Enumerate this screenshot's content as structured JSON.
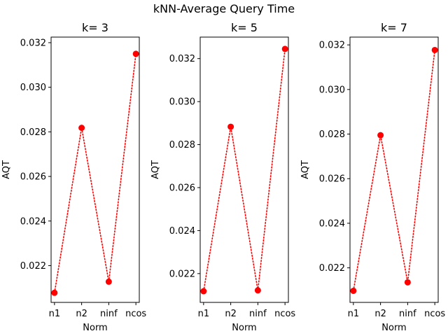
{
  "figure": {
    "title": "kNN-Average Query Time"
  },
  "colors": {
    "series": "#ff0000",
    "axes": "#000000",
    "background": "#ffffff"
  },
  "chart_data": [
    {
      "type": "line",
      "title": "k= 3",
      "xlabel": "Norm",
      "ylabel": "AQT",
      "categories": [
        "n1",
        "n2",
        "ninf",
        "ncos"
      ],
      "series": [
        {
          "values": [
            0.02078,
            0.02818,
            0.02128,
            0.0315
          ],
          "line_style": "dotted",
          "marker": "circle"
        }
      ],
      "ylim": [
        0.02035,
        0.03225
      ],
      "yticks": [
        0.022,
        0.024,
        0.026,
        0.028,
        0.03,
        0.032
      ],
      "ytick_labels": [
        "0.022",
        "0.024",
        "0.026",
        "0.028",
        "0.030",
        "0.032"
      ],
      "grid": false
    },
    {
      "type": "line",
      "title": "k= 5",
      "xlabel": "Norm",
      "ylabel": "AQT",
      "categories": [
        "n1",
        "n2",
        "ninf",
        "ncos"
      ],
      "series": [
        {
          "values": [
            0.02118,
            0.02883,
            0.02122,
            0.03245
          ],
          "line_style": "dotted",
          "marker": "circle"
        }
      ],
      "ylim": [
        0.02066,
        0.033
      ],
      "yticks": [
        0.022,
        0.024,
        0.026,
        0.028,
        0.03,
        0.032
      ],
      "ytick_labels": [
        "0.022",
        "0.024",
        "0.026",
        "0.028",
        "0.030",
        "0.032"
      ],
      "grid": false
    },
    {
      "type": "line",
      "title": "k= 7",
      "xlabel": "Norm",
      "ylabel": "AQT",
      "categories": [
        "n1",
        "n2",
        "ninf",
        "ncos"
      ],
      "series": [
        {
          "values": [
            0.02097,
            0.02795,
            0.02135,
            0.03177
          ],
          "line_style": "dotted",
          "marker": "circle"
        }
      ],
      "ylim": [
        0.02045,
        0.03235
      ],
      "yticks": [
        0.022,
        0.024,
        0.026,
        0.028,
        0.03,
        0.032
      ],
      "ytick_labels": [
        "0.022",
        "0.024",
        "0.026",
        "0.028",
        "0.030",
        "0.032"
      ],
      "grid": false
    }
  ]
}
